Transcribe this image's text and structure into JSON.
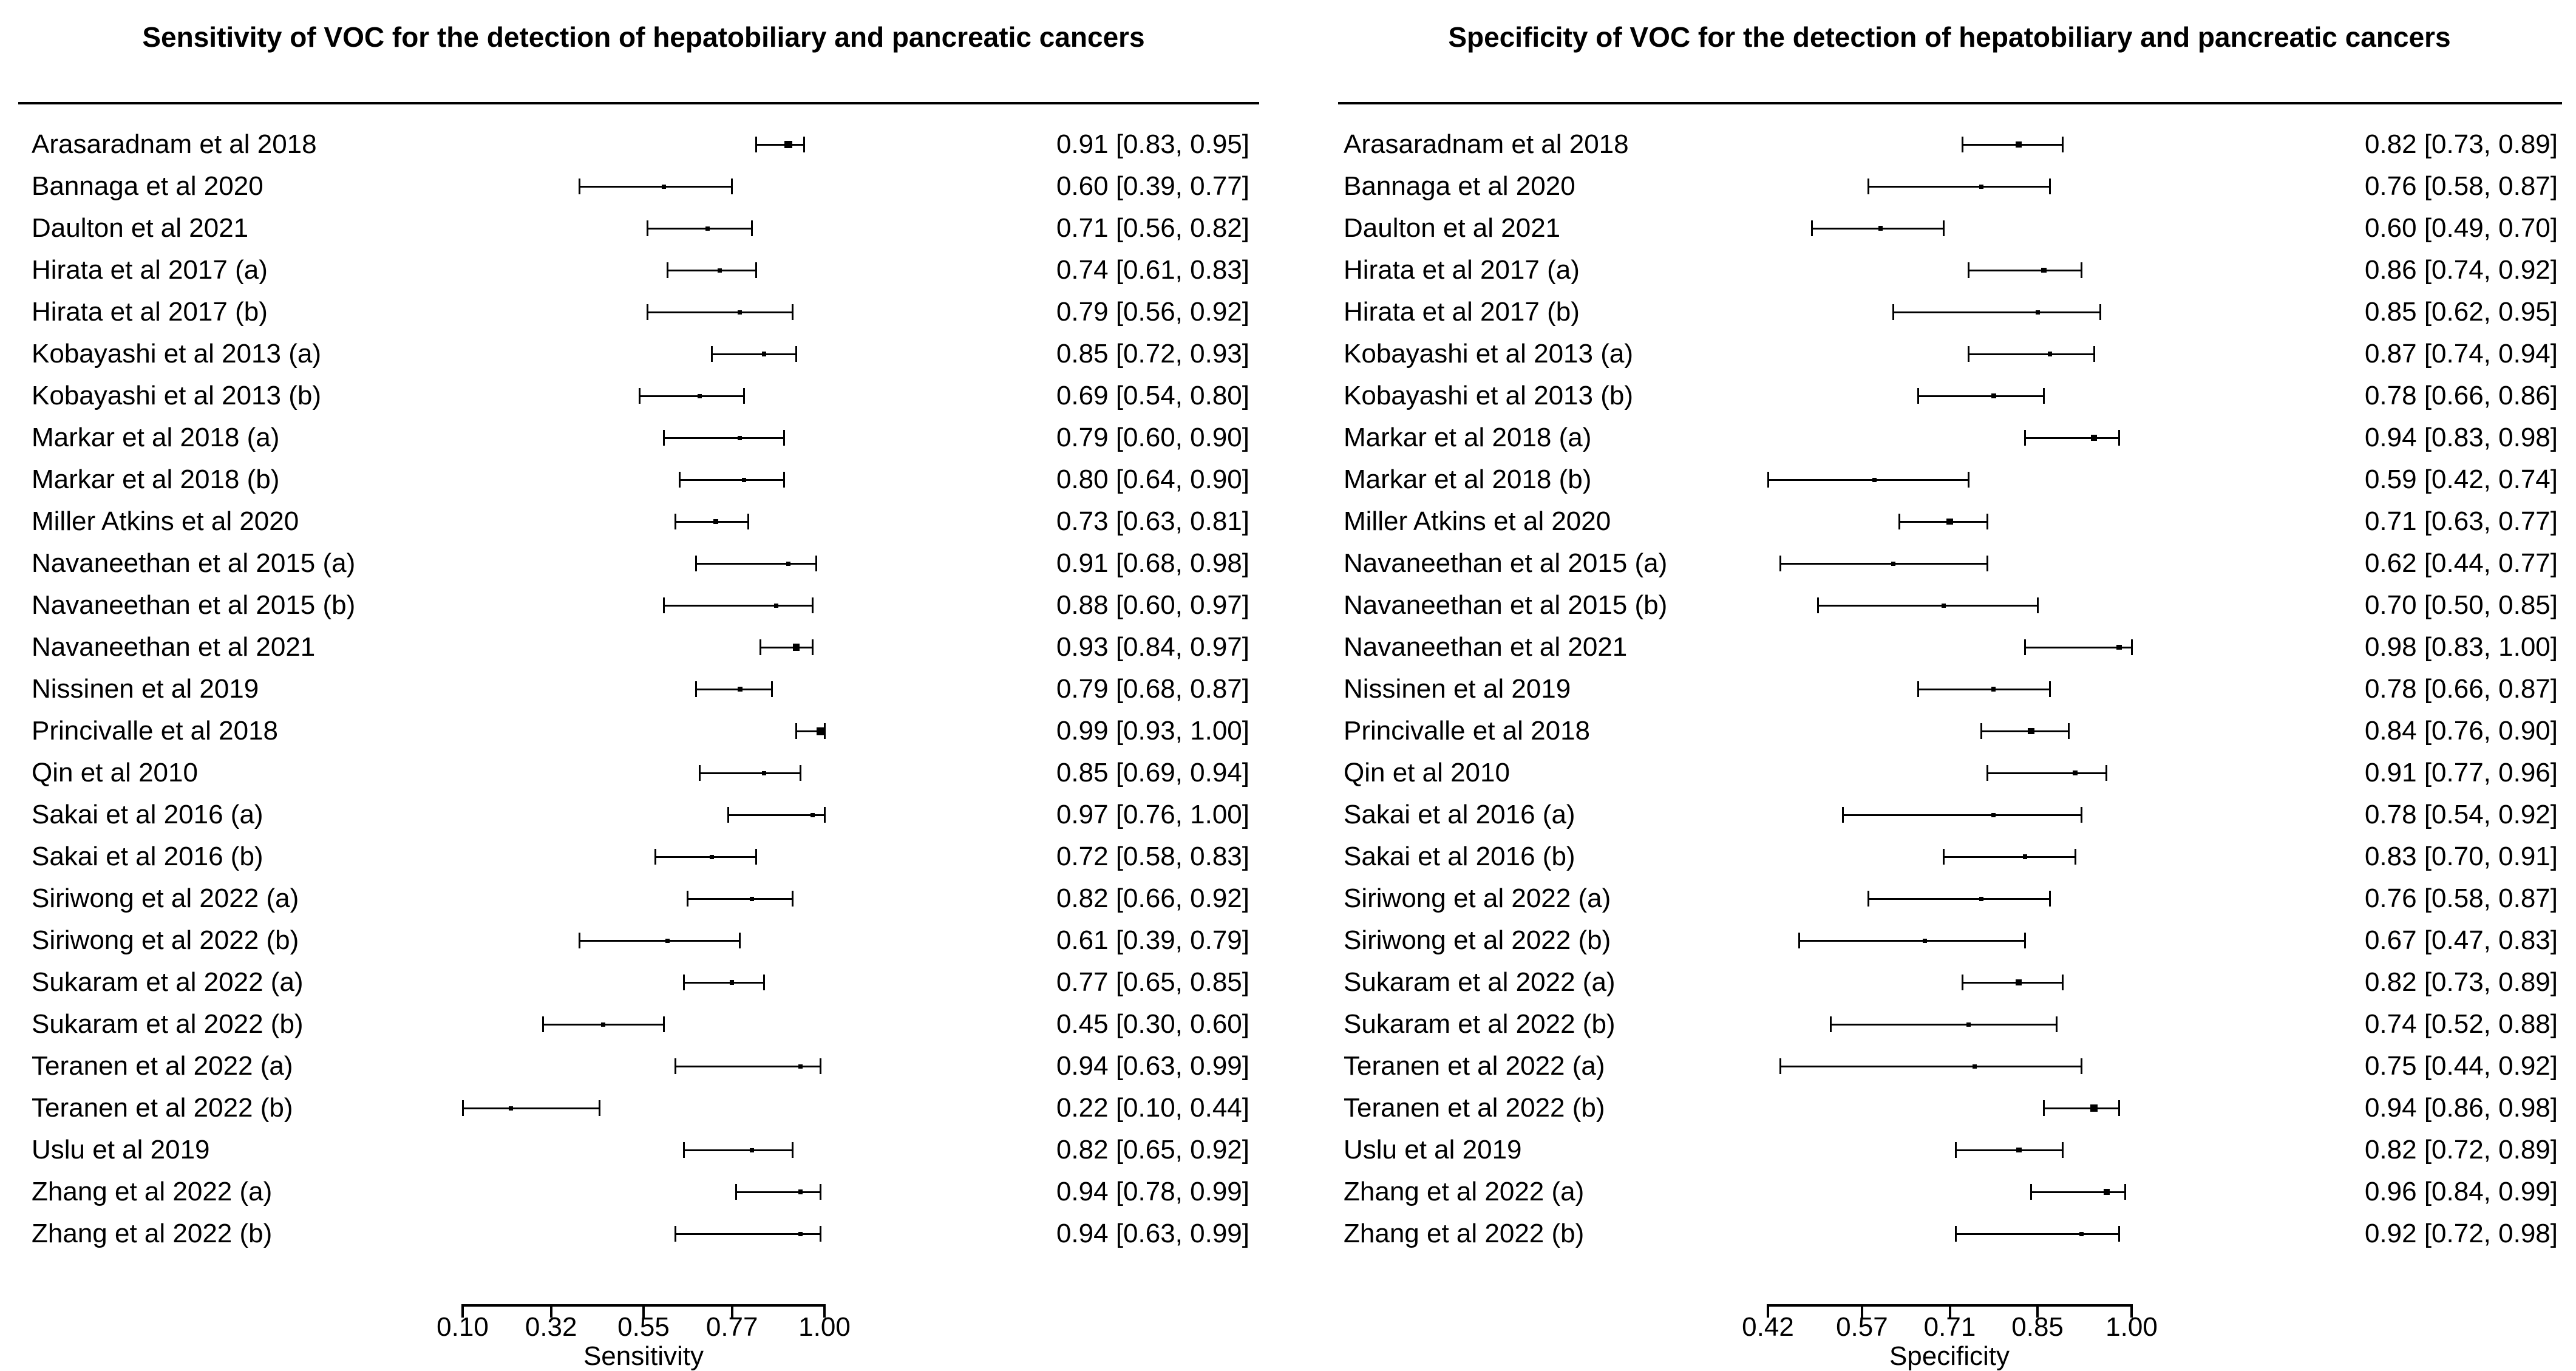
{
  "figure": {
    "background": "#ffffff",
    "ink_color": "#000000"
  },
  "chart_data": [
    {
      "type": "forest",
      "title": "Sensitivity of VOC for the detection of hepatobiliary and pancreatic cancers",
      "xlabel": "Sensitivity",
      "axis": {
        "min": 0.1,
        "max": 1.0,
        "tick_values": [
          0.1,
          0.32,
          0.55,
          0.77,
          1.0
        ],
        "tick_labels": [
          "0.10",
          "0.32",
          "0.55",
          "0.77",
          "1.00"
        ]
      },
      "rows": [
        {
          "study": "Arasaradnam et al 2018",
          "est": 0.91,
          "lo": 0.83,
          "hi": 0.95,
          "label": "0.91 [0.83, 0.95]"
        },
        {
          "study": "Bannaga et al 2020",
          "est": 0.6,
          "lo": 0.39,
          "hi": 0.77,
          "label": "0.60 [0.39, 0.77]"
        },
        {
          "study": "Daulton et al 2021",
          "est": 0.71,
          "lo": 0.56,
          "hi": 0.82,
          "label": "0.71 [0.56, 0.82]"
        },
        {
          "study": "Hirata et al 2017 (a)",
          "est": 0.74,
          "lo": 0.61,
          "hi": 0.83,
          "label": "0.74 [0.61, 0.83]"
        },
        {
          "study": "Hirata et al 2017 (b)",
          "est": 0.79,
          "lo": 0.56,
          "hi": 0.92,
          "label": "0.79 [0.56, 0.92]"
        },
        {
          "study": "Kobayashi et al 2013 (a)",
          "est": 0.85,
          "lo": 0.72,
          "hi": 0.93,
          "label": "0.85 [0.72, 0.93]"
        },
        {
          "study": "Kobayashi et al 2013 (b)",
          "est": 0.69,
          "lo": 0.54,
          "hi": 0.8,
          "label": "0.69 [0.54, 0.80]"
        },
        {
          "study": "Markar et al 2018 (a)",
          "est": 0.79,
          "lo": 0.6,
          "hi": 0.9,
          "label": "0.79 [0.60, 0.90]"
        },
        {
          "study": "Markar et al 2018 (b)",
          "est": 0.8,
          "lo": 0.64,
          "hi": 0.9,
          "label": "0.80 [0.64, 0.90]"
        },
        {
          "study": "Miller Atkins et al 2020",
          "est": 0.73,
          "lo": 0.63,
          "hi": 0.81,
          "label": "0.73 [0.63, 0.81]"
        },
        {
          "study": "Navaneethan et al 2015 (a)",
          "est": 0.91,
          "lo": 0.68,
          "hi": 0.98,
          "label": "0.91 [0.68, 0.98]"
        },
        {
          "study": "Navaneethan et al 2015 (b)",
          "est": 0.88,
          "lo": 0.6,
          "hi": 0.97,
          "label": "0.88 [0.60, 0.97]"
        },
        {
          "study": "Navaneethan et al 2021",
          "est": 0.93,
          "lo": 0.84,
          "hi": 0.97,
          "label": "0.93 [0.84, 0.97]"
        },
        {
          "study": "Nissinen et al 2019",
          "est": 0.79,
          "lo": 0.68,
          "hi": 0.87,
          "label": "0.79 [0.68, 0.87]"
        },
        {
          "study": "Princivalle et al 2018",
          "est": 0.99,
          "lo": 0.93,
          "hi": 1.0,
          "label": "0.99 [0.93, 1.00]"
        },
        {
          "study": "Qin et al 2010",
          "est": 0.85,
          "lo": 0.69,
          "hi": 0.94,
          "label": "0.85 [0.69, 0.94]"
        },
        {
          "study": "Sakai et al 2016 (a)",
          "est": 0.97,
          "lo": 0.76,
          "hi": 1.0,
          "label": "0.97 [0.76, 1.00]"
        },
        {
          "study": "Sakai et al 2016 (b)",
          "est": 0.72,
          "lo": 0.58,
          "hi": 0.83,
          "label": "0.72 [0.58, 0.83]"
        },
        {
          "study": "Siriwong et al 2022 (a)",
          "est": 0.82,
          "lo": 0.66,
          "hi": 0.92,
          "label": "0.82 [0.66, 0.92]"
        },
        {
          "study": "Siriwong et al 2022 (b)",
          "est": 0.61,
          "lo": 0.39,
          "hi": 0.79,
          "label": "0.61 [0.39, 0.79]"
        },
        {
          "study": "Sukaram et al 2022 (a)",
          "est": 0.77,
          "lo": 0.65,
          "hi": 0.85,
          "label": "0.77 [0.65, 0.85]"
        },
        {
          "study": "Sukaram et al 2022 (b)",
          "est": 0.45,
          "lo": 0.3,
          "hi": 0.6,
          "label": "0.45 [0.30, 0.60]"
        },
        {
          "study": "Teranen et al 2022 (a)",
          "est": 0.94,
          "lo": 0.63,
          "hi": 0.99,
          "label": "0.94 [0.63, 0.99]"
        },
        {
          "study": "Teranen et al 2022 (b)",
          "est": 0.22,
          "lo": 0.1,
          "hi": 0.44,
          "label": "0.22 [0.10, 0.44]"
        },
        {
          "study": "Uslu et al 2019",
          "est": 0.82,
          "lo": 0.65,
          "hi": 0.92,
          "label": "0.82 [0.65, 0.92]"
        },
        {
          "study": "Zhang et al 2022 (a)",
          "est": 0.94,
          "lo": 0.78,
          "hi": 0.99,
          "label": "0.94 [0.78, 0.99]"
        },
        {
          "study": "Zhang et al 2022 (b)",
          "est": 0.94,
          "lo": 0.63,
          "hi": 0.99,
          "label": "0.94 [0.63, 0.99]"
        }
      ]
    },
    {
      "type": "forest",
      "title": "Specificity of VOC for the detection of hepatobiliary and pancreatic cancers",
      "xlabel": "Specificity",
      "axis": {
        "min": 0.42,
        "max": 1.0,
        "tick_values": [
          0.42,
          0.57,
          0.71,
          0.85,
          1.0
        ],
        "tick_labels": [
          "0.42",
          "0.57",
          "0.71",
          "0.85",
          "1.00"
        ]
      },
      "rows": [
        {
          "study": "Arasaradnam et al 2018",
          "est": 0.82,
          "lo": 0.73,
          "hi": 0.89,
          "label": "0.82 [0.73, 0.89]"
        },
        {
          "study": "Bannaga et al 2020",
          "est": 0.76,
          "lo": 0.58,
          "hi": 0.87,
          "label": "0.76 [0.58, 0.87]"
        },
        {
          "study": "Daulton et al 2021",
          "est": 0.6,
          "lo": 0.49,
          "hi": 0.7,
          "label": "0.60 [0.49, 0.70]"
        },
        {
          "study": "Hirata et al 2017 (a)",
          "est": 0.86,
          "lo": 0.74,
          "hi": 0.92,
          "label": "0.86 [0.74, 0.92]"
        },
        {
          "study": "Hirata et al 2017 (b)",
          "est": 0.85,
          "lo": 0.62,
          "hi": 0.95,
          "label": "0.85 [0.62, 0.95]"
        },
        {
          "study": "Kobayashi et al 2013 (a)",
          "est": 0.87,
          "lo": 0.74,
          "hi": 0.94,
          "label": "0.87 [0.74, 0.94]"
        },
        {
          "study": "Kobayashi et al 2013 (b)",
          "est": 0.78,
          "lo": 0.66,
          "hi": 0.86,
          "label": "0.78 [0.66, 0.86]"
        },
        {
          "study": "Markar et al 2018 (a)",
          "est": 0.94,
          "lo": 0.83,
          "hi": 0.98,
          "label": "0.94 [0.83, 0.98]"
        },
        {
          "study": "Markar et al 2018 (b)",
          "est": 0.59,
          "lo": 0.42,
          "hi": 0.74,
          "label": "0.59 [0.42, 0.74]"
        },
        {
          "study": "Miller Atkins et al 2020",
          "est": 0.71,
          "lo": 0.63,
          "hi": 0.77,
          "label": "0.71 [0.63, 0.77]"
        },
        {
          "study": "Navaneethan et al 2015 (a)",
          "est": 0.62,
          "lo": 0.44,
          "hi": 0.77,
          "label": "0.62 [0.44, 0.77]"
        },
        {
          "study": "Navaneethan et al 2015 (b)",
          "est": 0.7,
          "lo": 0.5,
          "hi": 0.85,
          "label": "0.70 [0.50, 0.85]"
        },
        {
          "study": "Navaneethan et al 2021",
          "est": 0.98,
          "lo": 0.83,
          "hi": 1.0,
          "label": "0.98 [0.83, 1.00]"
        },
        {
          "study": "Nissinen et al 2019",
          "est": 0.78,
          "lo": 0.66,
          "hi": 0.87,
          "label": "0.78 [0.66, 0.87]"
        },
        {
          "study": "Princivalle et al 2018",
          "est": 0.84,
          "lo": 0.76,
          "hi": 0.9,
          "label": "0.84 [0.76, 0.90]"
        },
        {
          "study": "Qin et al 2010",
          "est": 0.91,
          "lo": 0.77,
          "hi": 0.96,
          "label": "0.91 [0.77, 0.96]"
        },
        {
          "study": "Sakai et al 2016 (a)",
          "est": 0.78,
          "lo": 0.54,
          "hi": 0.92,
          "label": "0.78 [0.54, 0.92]"
        },
        {
          "study": "Sakai et al 2016 (b)",
          "est": 0.83,
          "lo": 0.7,
          "hi": 0.91,
          "label": "0.83 [0.70, 0.91]"
        },
        {
          "study": "Siriwong et al 2022 (a)",
          "est": 0.76,
          "lo": 0.58,
          "hi": 0.87,
          "label": "0.76 [0.58, 0.87]"
        },
        {
          "study": "Siriwong et al 2022 (b)",
          "est": 0.67,
          "lo": 0.47,
          "hi": 0.83,
          "label": "0.67 [0.47, 0.83]"
        },
        {
          "study": "Sukaram et al 2022 (a)",
          "est": 0.82,
          "lo": 0.73,
          "hi": 0.89,
          "label": "0.82 [0.73, 0.89]"
        },
        {
          "study": "Sukaram et al 2022 (b)",
          "est": 0.74,
          "lo": 0.52,
          "hi": 0.88,
          "label": "0.74 [0.52, 0.88]"
        },
        {
          "study": "Teranen et al 2022 (a)",
          "est": 0.75,
          "lo": 0.44,
          "hi": 0.92,
          "label": "0.75 [0.44, 0.92]"
        },
        {
          "study": "Teranen et al 2022 (b)",
          "est": 0.94,
          "lo": 0.86,
          "hi": 0.98,
          "label": "0.94 [0.86, 0.98]"
        },
        {
          "study": "Uslu et al 2019",
          "est": 0.82,
          "lo": 0.72,
          "hi": 0.89,
          "label": "0.82 [0.72, 0.89]"
        },
        {
          "study": "Zhang et al 2022 (a)",
          "est": 0.96,
          "lo": 0.84,
          "hi": 0.99,
          "label": "0.96 [0.84, 0.99]"
        },
        {
          "study": "Zhang et al 2022 (b)",
          "est": 0.92,
          "lo": 0.72,
          "hi": 0.98,
          "label": "0.92 [0.72, 0.98]"
        }
      ]
    }
  ]
}
